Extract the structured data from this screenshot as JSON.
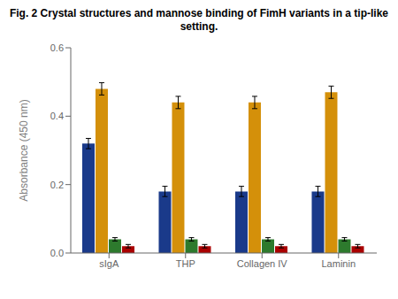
{
  "chart_data": {
    "type": "bar",
    "title": "Fig. 2 Crystal structures and mannose binding of FimH variants in a tip-like setting.",
    "categories": [
      "sIgA",
      "THP",
      "Collagen IV",
      "Laminin"
    ],
    "series": [
      {
        "color": "#1a3a8a",
        "values": [
          0.32,
          0.18,
          0.18,
          0.18
        ],
        "errors": [
          0.015,
          0.015,
          0.015,
          0.015
        ]
      },
      {
        "color": "#d4900a",
        "values": [
          0.48,
          0.44,
          0.44,
          0.47
        ],
        "errors": [
          0.018,
          0.018,
          0.018,
          0.018
        ]
      },
      {
        "color": "#2d7a2d",
        "values": [
          0.04,
          0.04,
          0.04,
          0.04
        ],
        "errors": [
          0.005,
          0.005,
          0.005,
          0.005
        ]
      },
      {
        "color": "#aa0000",
        "values": [
          0.02,
          0.02,
          0.02,
          0.02
        ],
        "errors": [
          0.005,
          0.005,
          0.005,
          0.005
        ]
      }
    ],
    "y_label": "Absorbance (450 nm)",
    "ylim": [
      0.0,
      0.6
    ],
    "yticks": [
      {
        "value": 0,
        "label": "0.0"
      },
      0.2,
      0.4,
      0.6
    ],
    "grid": false
  }
}
